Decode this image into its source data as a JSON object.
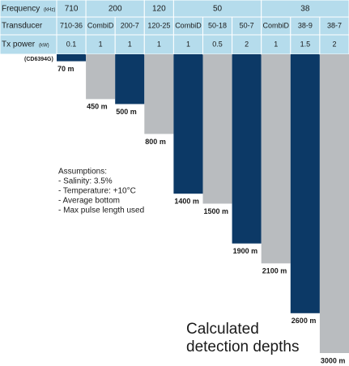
{
  "chart_data": {
    "type": "hanging-bar",
    "row_labels": {
      "frequency": "Frequency",
      "frequency_unit": "(kHz)",
      "transducer": "Transducer",
      "tx_power": "Tx power",
      "tx_power_unit": "(kW)"
    },
    "note": "(CD6394G)",
    "groups": [
      {
        "frequency": 710,
        "transducers": [
          "710-36"
        ],
        "tx_power": [
          0.1
        ],
        "values": [
          70
        ],
        "value_labels": [
          "70 m"
        ]
      },
      {
        "frequency": 200,
        "transducers": [
          "CombiD",
          "200-7"
        ],
        "tx_power": [
          1,
          1
        ],
        "values": [
          450,
          500
        ],
        "value_labels": [
          "450 m",
          "500 m"
        ]
      },
      {
        "frequency": 120,
        "transducers": [
          "120-25"
        ],
        "tx_power": [
          1
        ],
        "values": [
          800
        ],
        "value_labels": [
          "800 m"
        ]
      },
      {
        "frequency": 50,
        "transducers": [
          "CombiD",
          "50-18",
          "50-7"
        ],
        "tx_power": [
          1,
          0.5,
          2
        ],
        "values": [
          1400,
          1500,
          1900
        ],
        "value_labels": [
          "1400 m",
          "1500 m",
          "1900 m"
        ]
      },
      {
        "frequency": 38,
        "transducers": [
          "CombiD",
          "38-9",
          "38-7"
        ],
        "tx_power": [
          1,
          1.5,
          2
        ],
        "values": [
          2100,
          2600,
          3000
        ],
        "value_labels": [
          "2100 m",
          "2600 m",
          "3000 m"
        ]
      }
    ],
    "colors": [
      "#0c3966",
      "#b9bcbf"
    ],
    "ylim": [
      0,
      3000
    ],
    "assumptions": [
      "Assumptions:",
      "- Salinity: 3.5%",
      "- Temperature: +10°C",
      "- Average bottom",
      "- Max pulse length used"
    ],
    "title": [
      "Calculated",
      "detection depths"
    ]
  }
}
